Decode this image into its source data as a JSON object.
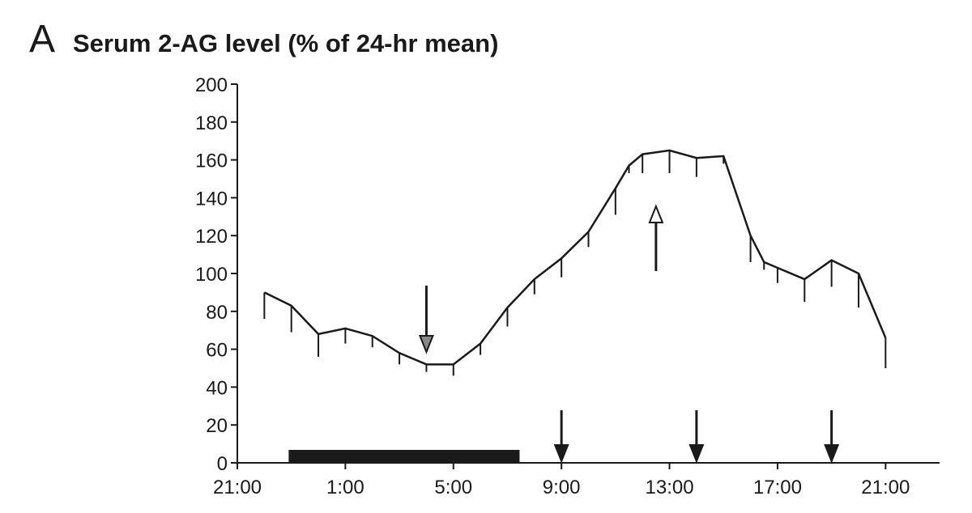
{
  "chart_data": {
    "type": "line",
    "panel_label": "A",
    "title": "Serum 2-AG level (% of 24-hr mean)",
    "x": [
      22,
      23,
      24,
      25,
      26,
      27,
      28,
      29,
      30,
      31,
      32,
      33,
      34,
      35,
      35.5,
      36,
      37,
      38,
      39,
      40,
      40.5,
      41,
      42,
      43,
      44,
      45
    ],
    "series": [
      {
        "color": "#1a1a1a",
        "values": [
          90,
          83,
          68,
          71,
          67,
          58,
          52,
          52,
          63,
          82,
          97,
          108,
          122,
          145,
          157,
          163,
          165,
          161,
          162,
          120,
          106,
          103,
          97,
          107,
          100,
          66
        ],
        "errors": [
          14,
          14,
          12,
          8,
          6,
          6,
          4,
          6,
          6,
          10,
          8,
          10,
          8,
          14,
          4,
          10,
          12,
          10,
          4,
          14,
          4,
          8,
          12,
          14,
          18,
          16
        ]
      }
    ],
    "xlim": [
      21,
      47
    ],
    "xticks": [
      {
        "value": 21,
        "label": "21:00"
      },
      {
        "value": 25,
        "label": "1:00"
      },
      {
        "value": 29,
        "label": "5:00"
      },
      {
        "value": 33,
        "label": "9:00"
      },
      {
        "value": 37,
        "label": "13:00"
      },
      {
        "value": 41,
        "label": "17:00"
      },
      {
        "value": 45,
        "label": "21:00"
      }
    ],
    "ylim": [
      0,
      200
    ],
    "yticks": [
      0,
      20,
      40,
      60,
      80,
      100,
      120,
      140,
      160,
      180,
      200
    ],
    "dark_period": [
      22.9,
      31.45
    ],
    "meal_arrows": [
      33,
      38,
      43
    ],
    "nadir_arrow_x": 28,
    "peak_arrow_x": 36.5
  }
}
